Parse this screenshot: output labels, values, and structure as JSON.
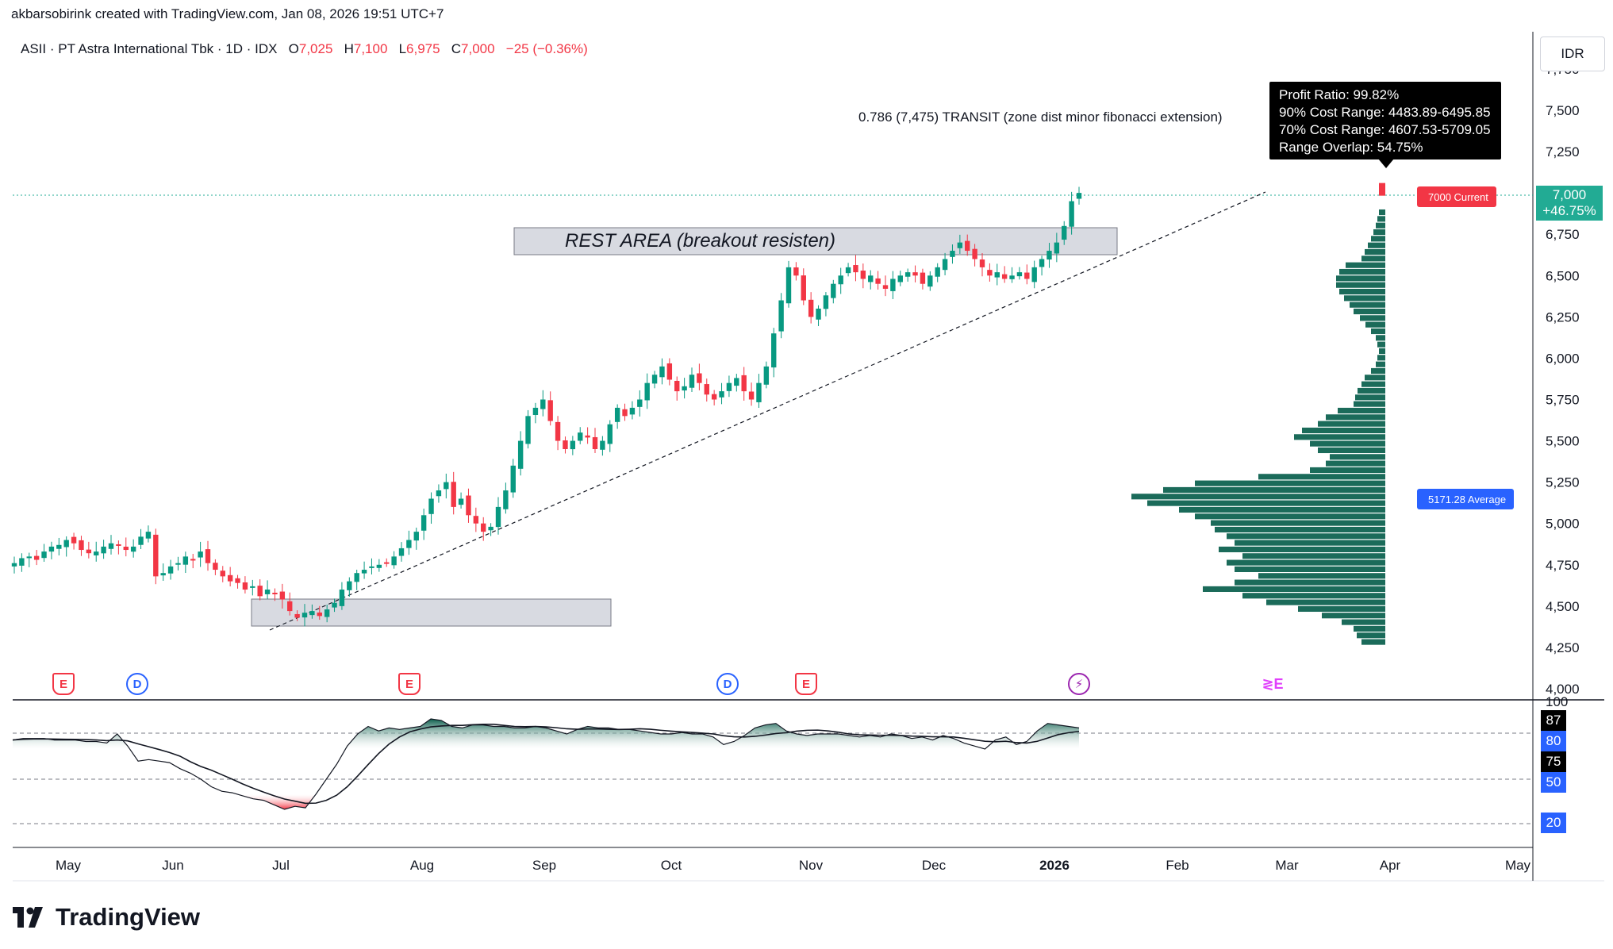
{
  "header": {
    "credit": "akbarsobirink created with TradingView.com, Jan 08, 2026 19:51 UTC+7"
  },
  "legend": {
    "symbol": "ASII · PT Astra International Tbk · 1D · IDX",
    "o_label": "O",
    "o_value": "7,025",
    "h_label": "H",
    "h_value": "7,100",
    "l_label": "L",
    "l_value": "6,975",
    "c_label": "C",
    "c_value": "7,000",
    "change": "−25 (−0.36%)"
  },
  "currency": "IDR",
  "price_tag": {
    "price": "7,000",
    "pct": "+46.75%"
  },
  "current_tag": "7000 Current",
  "average_tag": "5171.28 Average",
  "tooltip": {
    "line1": "Profit Ratio: 99.82%",
    "line2": "90% Cost Range: 4483.89-6495.85",
    "line3": "70% Cost Range: 4607.53-5709.05",
    "line4": "Range Overlap: 54.75%"
  },
  "fib_label": "0.786 (7,475)   TRANSIT (zone dist minor fibonacci extension)",
  "rest_area_label": "REST AREA (breakout resisten)",
  "events": [
    {
      "type": "E",
      "color": "#f23645"
    },
    {
      "type": "D",
      "color": "#2962ff"
    },
    {
      "type": "E",
      "color": "#f23645"
    },
    {
      "type": "D",
      "color": "#2962ff"
    },
    {
      "type": "E",
      "color": "#f23645"
    },
    {
      "type": "⚡",
      "color": "#9c27b0"
    },
    {
      "type": "≷E",
      "color": "#e040fb"
    }
  ],
  "rsi_tags": [
    {
      "value": "87",
      "color": "#000000"
    },
    {
      "value": "80",
      "color": "#2962ff"
    },
    {
      "value": "75",
      "color": "#000000"
    },
    {
      "value": "50",
      "color": "#2962ff"
    },
    {
      "value": "20",
      "color": "#2962ff"
    }
  ],
  "rsi_axis_top": "100",
  "logo_text": "TradingView",
  "colors": {
    "up": "#089981",
    "down": "#f23645",
    "profile": "#1b6b5a",
    "accent": "#2962ff"
  },
  "chart_data": {
    "type": "candlestick",
    "y_ticks": [
      "7,750",
      "7,500",
      "7,250",
      "7,000",
      "6,750",
      "6,500",
      "6,250",
      "6,000",
      "5,750",
      "5,500",
      "5,250",
      "5,000",
      "4,750",
      "4,500",
      "4,250",
      "4,000"
    ],
    "x_ticks": [
      "May",
      "Jun",
      "Jul",
      "Aug",
      "Sep",
      "Oct",
      "Nov",
      "Dec",
      "2026",
      "Feb",
      "Mar",
      "Apr",
      "May"
    ],
    "ylim": [
      4000,
      7750
    ],
    "rsi_ylim": [
      0,
      100
    ],
    "rsi_levels": [
      80,
      50,
      20
    ],
    "close_series": [
      4760,
      4790,
      4800,
      4780,
      4830,
      4860,
      4870,
      4900,
      4880,
      4840,
      4820,
      4830,
      4860,
      4880,
      4870,
      4840,
      4860,
      4920,
      4950,
      4680,
      4700,
      4740,
      4760,
      4800,
      4780,
      4830,
      4760,
      4720,
      4680,
      4650,
      4640,
      4600,
      4620,
      4560,
      4600,
      4580,
      4540,
      4470,
      4430,
      4460,
      4470,
      4440,
      4480,
      4520,
      4600,
      4650,
      4700,
      4720,
      4740,
      4750,
      4760,
      4800,
      4850,
      4900,
      4950,
      5050,
      5150,
      5200,
      5250,
      5100,
      5150,
      5050,
      5000,
      4950,
      4980,
      5100,
      5200,
      5350,
      5500,
      5650,
      5700,
      5750,
      5620,
      5500,
      5450,
      5500,
      5550,
      5520,
      5450,
      5500,
      5600,
      5700,
      5650,
      5700,
      5750,
      5850,
      5900,
      5950,
      5870,
      5800,
      5830,
      5900,
      5850,
      5780,
      5750,
      5800,
      5850,
      5880,
      5800,
      5750,
      5850,
      5950,
      6150,
      6350,
      6550,
      6500,
      6350,
      6250,
      6300,
      6380,
      6450,
      6500,
      6550,
      6520,
      6480,
      6500,
      6450,
      6420,
      6480,
      6500,
      6520,
      6500,
      6450,
      6500,
      6550,
      6600,
      6650,
      6700,
      6650,
      6600,
      6550,
      6500,
      6520,
      6480,
      6500,
      6520,
      6480,
      6550,
      6600,
      6650,
      6700,
      6800,
      6950,
      7000
    ],
    "rsi_series": [
      76,
      77,
      77,
      77,
      76,
      76,
      76,
      75,
      75,
      74,
      80,
      72,
      62,
      63,
      62,
      61,
      57,
      54,
      50,
      45,
      42,
      41,
      39,
      37,
      36,
      33,
      30,
      32,
      31,
      40,
      50,
      60,
      72,
      80,
      85,
      82,
      84,
      83,
      84,
      85,
      90,
      89,
      85,
      84,
      86,
      86,
      85,
      85,
      84,
      84,
      85,
      84,
      82,
      80,
      83,
      85,
      84,
      84,
      83,
      83,
      82,
      81,
      80,
      80,
      81,
      80,
      80,
      78,
      73,
      75,
      79,
      84,
      86,
      87,
      82,
      80,
      79,
      80,
      80,
      80,
      79,
      78,
      79,
      78,
      80,
      79,
      77,
      78,
      76,
      79,
      77,
      74,
      72,
      70,
      76,
      78,
      73,
      75,
      82,
      87,
      86,
      85,
      84
    ],
    "profile_90_range": [
      4483.89,
      6495.85
    ],
    "profile_70_range": [
      4607.53,
      5709.05
    ],
    "profile_average": 5171.28,
    "profit_ratio_pct": 99.82,
    "range_overlap_pct": 54.75,
    "fib_level": 0.786,
    "fib_price": 7475,
    "last_price": 7000
  }
}
